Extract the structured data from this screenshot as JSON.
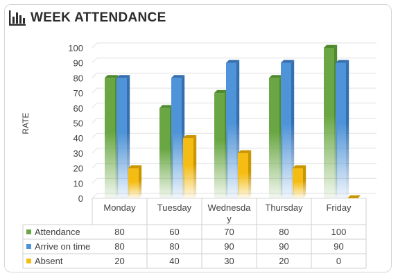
{
  "chart_data": {
    "type": "bar",
    "title": "WEEK ATTENDANCE",
    "ylabel": "RATE",
    "xlabel": "",
    "ylim": [
      0,
      100
    ],
    "yticks": [
      0,
      10,
      20,
      30,
      40,
      50,
      60,
      70,
      80,
      90,
      100
    ],
    "categories": [
      "Monday",
      "Tuesday",
      "Wednesday",
      "Thursday",
      "Friday"
    ],
    "category_labels": [
      [
        "Monday"
      ],
      [
        "Tuesday"
      ],
      [
        "Wednesda",
        "y"
      ],
      [
        "Thursday"
      ],
      [
        "Friday"
      ]
    ],
    "series": [
      {
        "name": "Attendance",
        "values": [
          80,
          60,
          70,
          80,
          100
        ],
        "color": "#6aa744",
        "color_dark": "#4f8a2d"
      },
      {
        "name": "Arrive on time",
        "values": [
          80,
          80,
          90,
          90,
          90
        ],
        "color": "#4f94d8",
        "color_dark": "#356fae"
      },
      {
        "name": "Absent",
        "values": [
          20,
          40,
          30,
          20,
          0
        ],
        "color": "#f5bd13",
        "color_dark": "#c99500"
      }
    ],
    "grid": true,
    "legend": "data-table"
  }
}
